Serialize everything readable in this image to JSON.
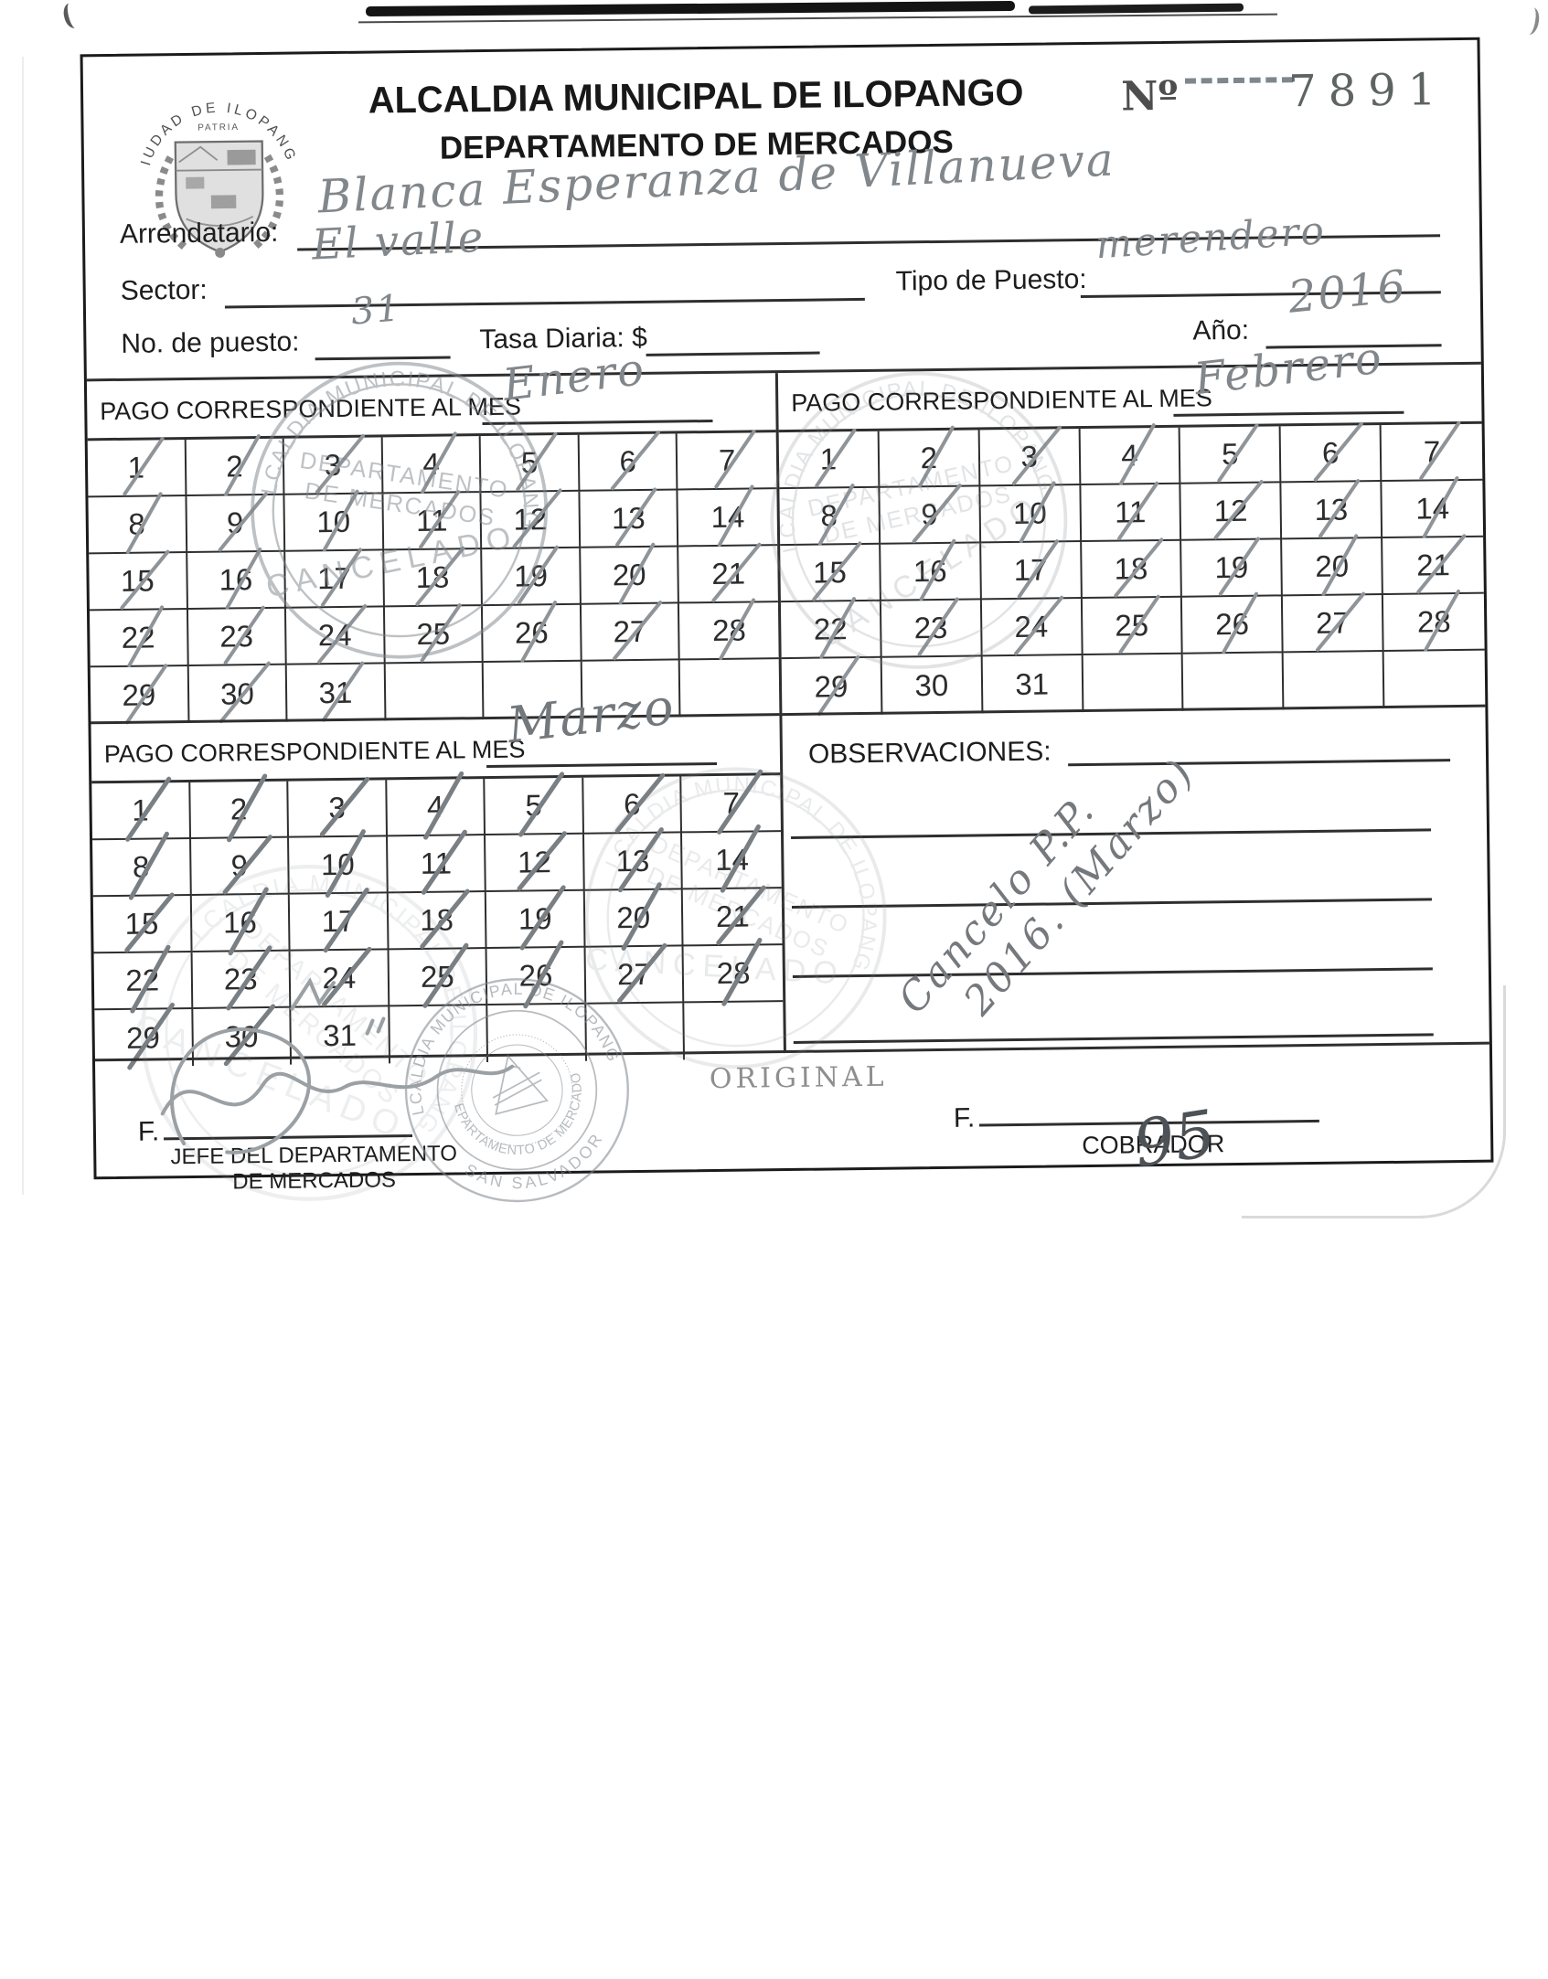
{
  "header": {
    "title": "ALCALDIA MUNICIPAL DE ILOPANGO",
    "subtitle": "DEPARTAMENTO DE MERCADOS",
    "receipt_no_label": "Nº",
    "receipt_no": "7891",
    "seal_arc_text": "CIUDAD DE ILOPANGO",
    "seal_motto": "PATRIA"
  },
  "fields": {
    "arrendatario": {
      "label": "Arrendatario:",
      "value": "Blanca Esperanza de Villanueva"
    },
    "sector": {
      "label": "Sector:",
      "value": "El valle"
    },
    "tipo_puesto": {
      "label": "Tipo de Puesto:",
      "value": "merendero"
    },
    "no_puesto": {
      "label": "No. de puesto:",
      "value": "31"
    },
    "tasa_diaria": {
      "label": "Tasa Diaria: $",
      "value": ""
    },
    "anio": {
      "label": "Año:",
      "value": "2016"
    }
  },
  "calendars": [
    {
      "label": "PAGO CORRESPONDIENTE AL MES",
      "month": "Enero",
      "days_shown": 31,
      "last_crossed_day": 31
    },
    {
      "label": "PAGO CORRESPONDIENTE AL MES",
      "month": "Febrero",
      "days_shown": 31,
      "last_crossed_day": 29
    },
    {
      "label": "PAGO CORRESPONDIENTE AL MES",
      "month": "Marzo",
      "days_shown": 31,
      "last_crossed_day": 30
    }
  ],
  "observaciones": {
    "label": "OBSERVACIONES:",
    "note_line1": "Cancelo P.P.",
    "note_line2": "2016. (Marzo)"
  },
  "footer": {
    "left": {
      "sig_label": "F.",
      "role_line1": "JEFE DEL DEPARTAMENTO",
      "role_line2": "DE MERCADOS"
    },
    "center_label": "ORIGINAL",
    "right": {
      "sig_label": "F.",
      "role": "COBRADOR",
      "handwritten_mark": "95"
    }
  },
  "stamps": {
    "cancelado": {
      "arc_top": "ALCALDIA MUNICIPAL DE ILOPANGO",
      "line1": "DEPARTAMENTO",
      "line2": "DE MERCADOS",
      "diagonal": "CANCELADO"
    },
    "seal_round": {
      "arc_top": "ALCALDIA MUNICIPAL DE ILOPANGO",
      "arc_inner": "DEPARTAMENTO DE MERCADOS",
      "arc_bottom": "SAN SALVADOR"
    }
  },
  "ink_colors": {
    "pencil": "#8f9499",
    "stamp": "#7e858b",
    "print": "#1d1d1d"
  }
}
